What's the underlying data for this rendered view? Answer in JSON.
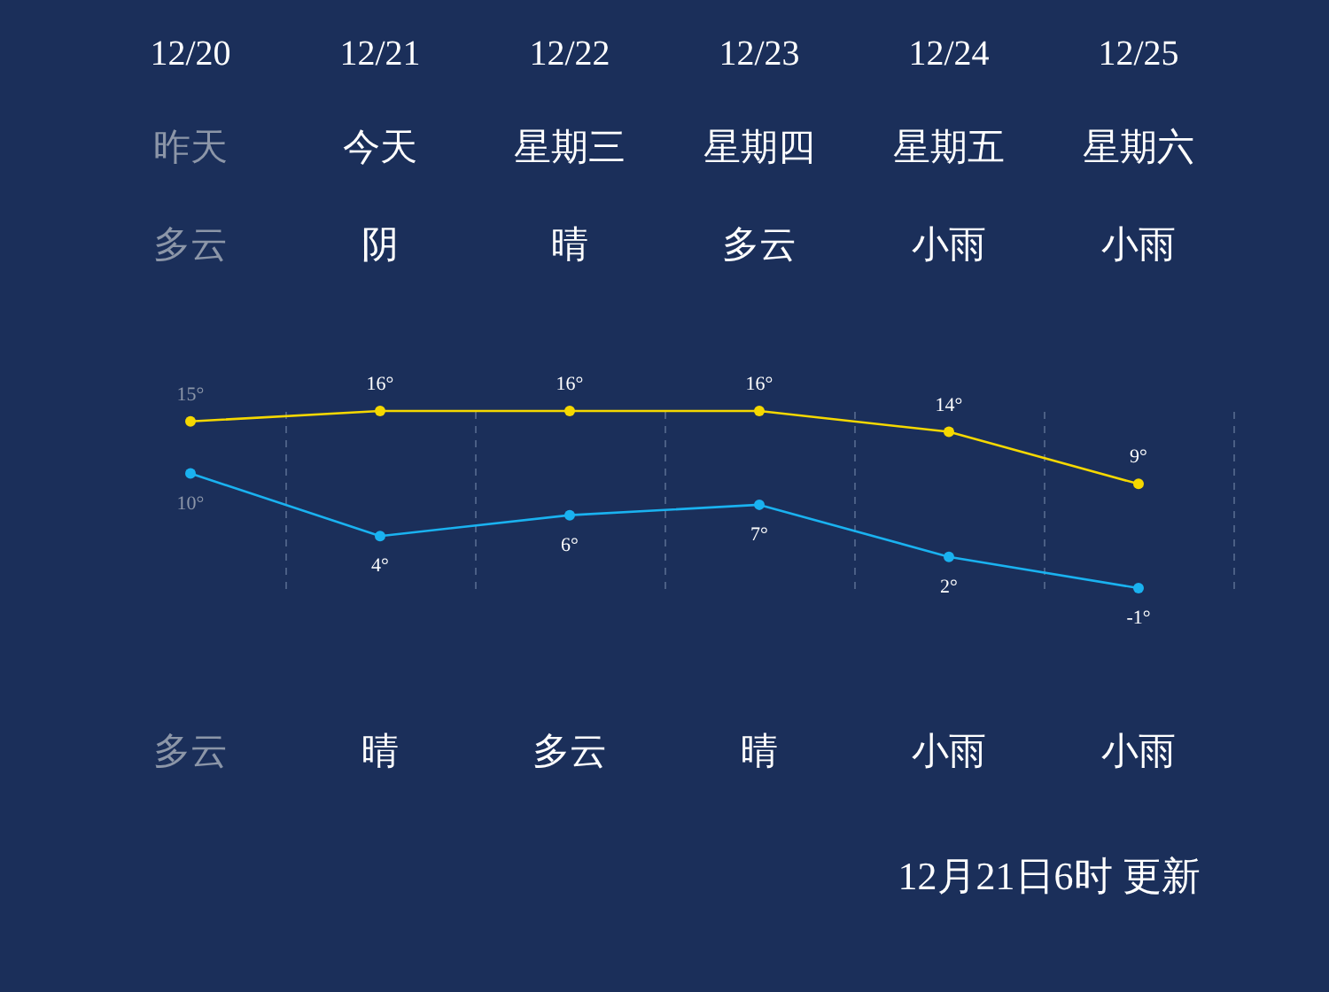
{
  "chart_data": {
    "type": "line",
    "categories": [
      "12/20",
      "12/21",
      "12/22",
      "12/23",
      "12/24",
      "12/25"
    ],
    "series": [
      {
        "color": "#f5d800",
        "values": [
          15,
          16,
          16,
          16,
          14,
          9
        ],
        "value_labels": [
          "15°",
          "16°",
          "16°",
          "16°",
          "14°",
          "9°"
        ]
      },
      {
        "color": "#1ab2f0",
        "values": [
          10,
          4,
          6,
          7,
          2,
          -1
        ],
        "value_labels": [
          "10°",
          "4°",
          "6°",
          "7°",
          "2°",
          "-1°"
        ]
      }
    ],
    "annotations": [
      "昨天",
      "今天",
      "星期三",
      "星期四",
      "星期五",
      "星期六",
      "多云",
      "阴",
      "晴",
      "多云",
      "小雨",
      "小雨",
      "多云",
      "晴",
      "多云",
      "晴",
      "小雨",
      "小雨",
      "12月21日6时 更新"
    ],
    "marker": "circle",
    "line_style": "solid",
    "grid": "x"
  }
}
